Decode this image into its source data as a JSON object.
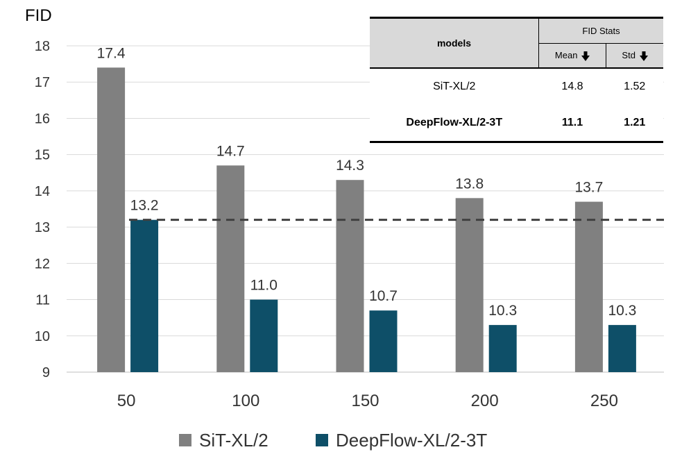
{
  "chart_data": {
    "type": "bar",
    "ylabel": "FID",
    "categories": [
      "50",
      "100",
      "150",
      "200",
      "250"
    ],
    "series": [
      {
        "name": "SiT-XL/2",
        "color": "#808080",
        "values": [
          17.4,
          14.7,
          14.3,
          13.8,
          13.7
        ],
        "labels": [
          "17.4",
          "14.7",
          "14.3",
          "13.8",
          "13.7"
        ]
      },
      {
        "name": "DeepFlow-XL/2-3T",
        "color": "#0e4f68",
        "values": [
          13.2,
          11.0,
          10.7,
          10.3,
          10.3
        ],
        "labels": [
          "13.2",
          "11.0",
          "10.7",
          "10.3",
          "10.3"
        ]
      }
    ],
    "ylim": [
      9,
      18
    ],
    "yticks": [
      "9",
      "10",
      "11",
      "12",
      "13",
      "14",
      "15",
      "16",
      "17",
      "18"
    ],
    "reference_line": {
      "value": 13.2,
      "style": "dashed"
    },
    "grid": true,
    "legend": "bottom"
  },
  "table": {
    "models_header": "models",
    "group_header": "FID Stats",
    "mean_header": "Mean",
    "std_header": "Std",
    "rows": [
      {
        "model": "SiT-XL/2",
        "mean": "14.8",
        "std": "1.52"
      },
      {
        "model": "DeepFlow-XL/2-3T",
        "mean": "11.1",
        "std": "1.21"
      }
    ]
  }
}
